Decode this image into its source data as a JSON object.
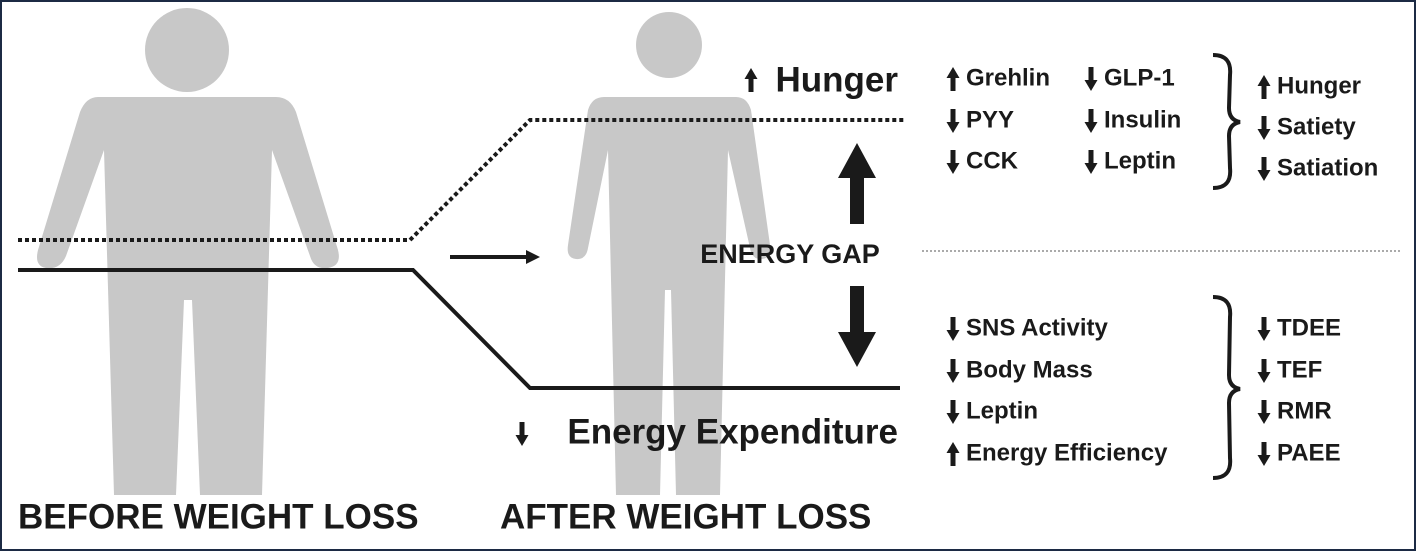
{
  "labels": {
    "hunger": "Hunger",
    "energy_gap": "ENERGY GAP",
    "energy_expenditure": "Energy Expenditure",
    "before": "BEFORE WEIGHT LOSS",
    "after": "AFTER WEIGHT LOSS"
  },
  "hunger_factors": {
    "hormones": [
      "Grehlin",
      "PYY",
      "CCK",
      "GLP-1",
      "Insulin",
      "Leptin"
    ],
    "effects": [
      "Hunger",
      "Satiety",
      "Satiation"
    ]
  },
  "expenditure_factors": {
    "adaptations": [
      "SNS Activity",
      "Body Mass",
      "Leptin",
      "Energy Efficiency"
    ],
    "effects": [
      "TDEE",
      "TEF",
      "RMR",
      "PAEE"
    ]
  }
}
